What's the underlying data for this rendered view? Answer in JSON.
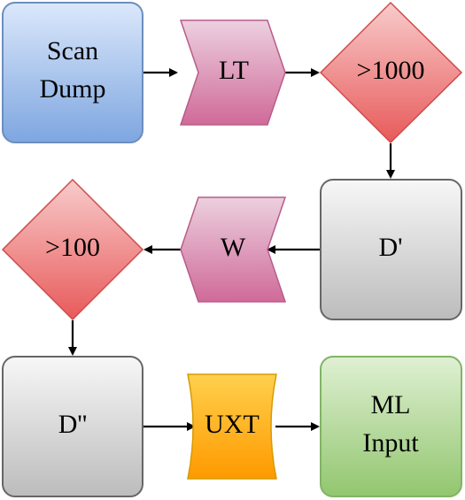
{
  "diagram": {
    "nodes": {
      "scan_dump": {
        "line1": "Scan",
        "line2": "Dump",
        "color": "#a8c6ee"
      },
      "lt": {
        "label": "LT",
        "color": "#d87fa6"
      },
      "gt1000": {
        "label": ">1000",
        "color": "#ee6e6e"
      },
      "d_prime": {
        "label": "D'",
        "color": "#cfcfcf"
      },
      "w": {
        "label": "W",
        "color": "#d87fa6"
      },
      "gt100": {
        "label": ">100",
        "color": "#ee6e6e"
      },
      "d_double_prime": {
        "label": "D''",
        "color": "#cfcfcf"
      },
      "uxt": {
        "label": "UXT",
        "color": "#ffb000"
      },
      "ml_input": {
        "line1": "ML",
        "line2": "Input",
        "color": "#a9d48c"
      }
    },
    "edges": [
      {
        "from": "Scan Dump",
        "to": "LT"
      },
      {
        "from": "LT",
        "to": ">1000"
      },
      {
        "from": ">1000",
        "to": "D'"
      },
      {
        "from": "D'",
        "to": "W"
      },
      {
        "from": "W",
        "to": ">100"
      },
      {
        "from": ">100",
        "to": "D''"
      },
      {
        "from": "D''",
        "to": "UXT"
      },
      {
        "from": "UXT",
        "to": "ML Input"
      }
    ]
  }
}
